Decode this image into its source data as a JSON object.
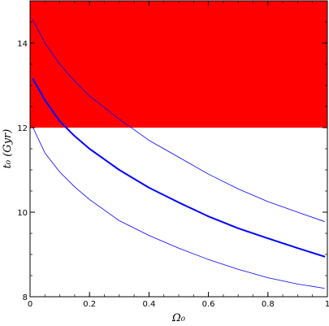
{
  "chart_data": {
    "type": "line",
    "title": "",
    "xlabel": "Ω₀",
    "ylabel": "t₀ (Gyr)",
    "xlim": [
      0,
      1
    ],
    "ylim": [
      8,
      15
    ],
    "x_ticks": [
      0,
      0.2,
      0.4,
      0.6,
      0.8,
      1
    ],
    "x_tick_labels": [
      "0",
      "0.2",
      "0.4",
      "0.6",
      "0.8",
      "1"
    ],
    "y_ticks": [
      8,
      10,
      12,
      14
    ],
    "y_tick_labels": [
      "8",
      "10",
      "12",
      "14"
    ],
    "shaded_region": {
      "y_from": 12,
      "y_to": 15,
      "color": "#ff0000"
    },
    "grid": false,
    "series": [
      {
        "style": "thick",
        "color": "#0000ff",
        "x": [
          0.01,
          0.05,
          0.1,
          0.15,
          0.2,
          0.3,
          0.4,
          0.5,
          0.6,
          0.7,
          0.8,
          0.9,
          0.99
        ],
        "y": [
          13.15,
          12.65,
          12.15,
          11.8,
          11.5,
          11.0,
          10.58,
          10.23,
          9.9,
          9.62,
          9.38,
          9.15,
          8.95
        ]
      },
      {
        "style": "thin",
        "color": "#0000ff",
        "x": [
          0.01,
          0.05,
          0.1,
          0.15,
          0.2,
          0.3,
          0.4,
          0.5,
          0.6,
          0.7,
          0.8,
          0.9,
          0.99
        ],
        "y": [
          14.55,
          14.0,
          13.5,
          13.1,
          12.75,
          12.2,
          11.7,
          11.3,
          10.9,
          10.55,
          10.25,
          10.0,
          9.78
        ]
      },
      {
        "style": "thin",
        "color": "#0000ff",
        "x": [
          0.01,
          0.05,
          0.1,
          0.15,
          0.2,
          0.3,
          0.4,
          0.5,
          0.6,
          0.7,
          0.8,
          0.9,
          0.99
        ],
        "y": [
          12.0,
          11.4,
          10.95,
          10.6,
          10.3,
          9.8,
          9.45,
          9.15,
          8.88,
          8.65,
          8.45,
          8.3,
          8.2
        ]
      }
    ]
  }
}
